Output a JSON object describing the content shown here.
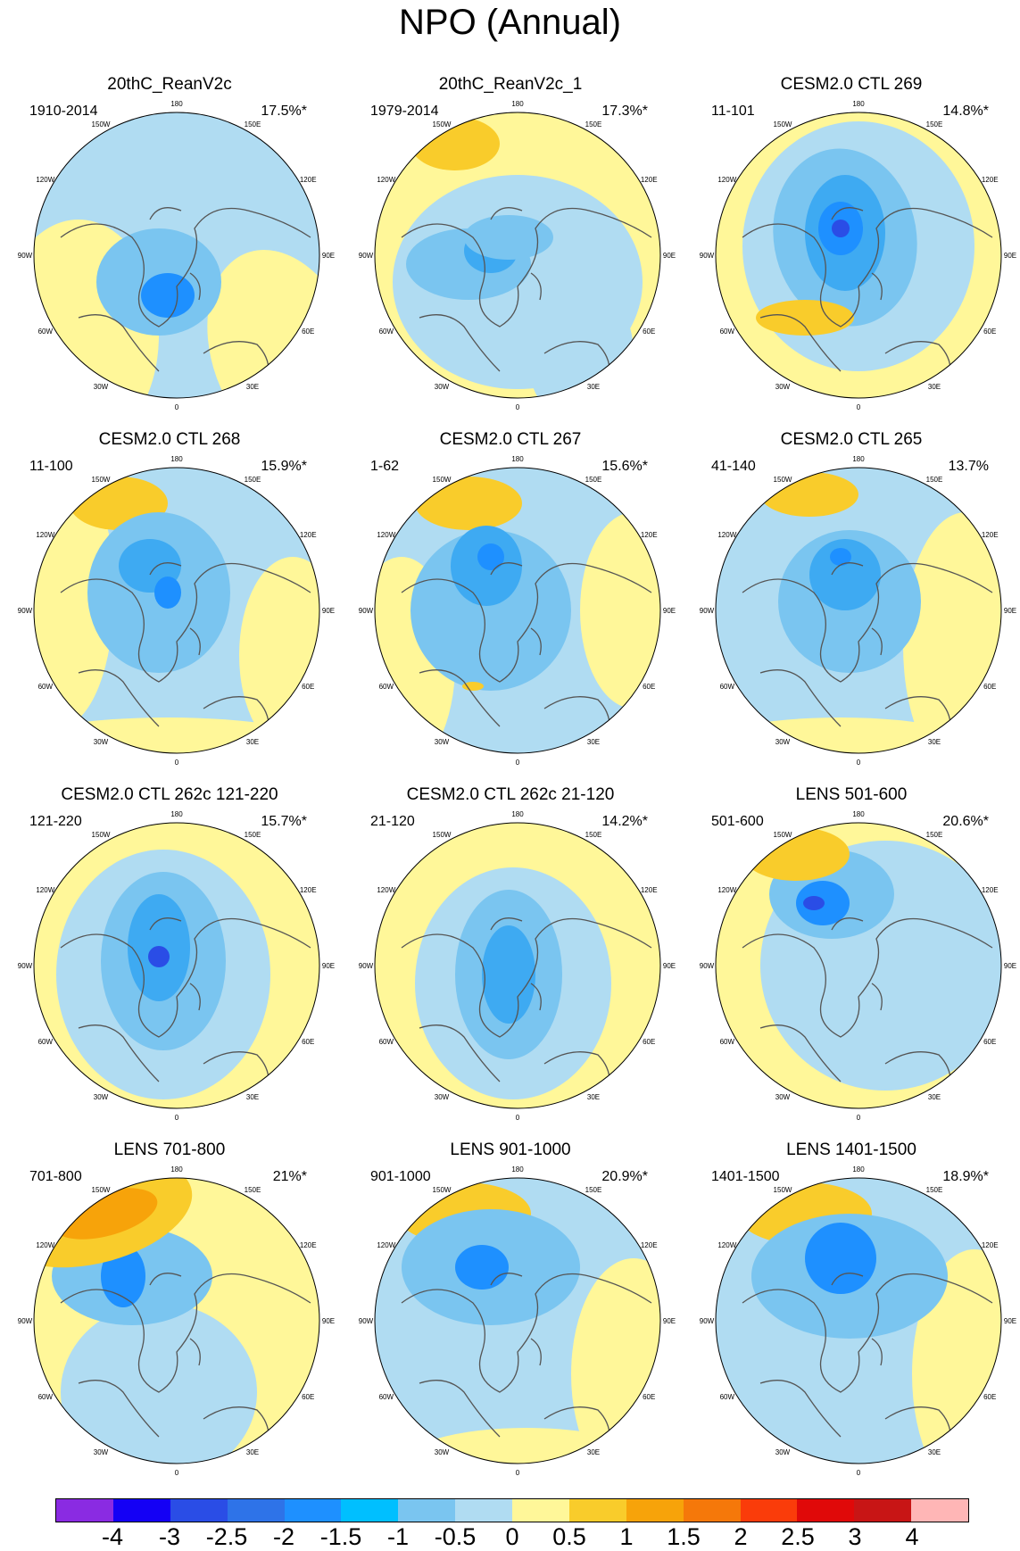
{
  "title": "NPO (Annual)",
  "longitude_labels": [
    "180",
    "150E",
    "120E",
    "90E",
    "60E",
    "30E",
    "0",
    "30W",
    "60W",
    "90W",
    "120W",
    "150W"
  ],
  "panels": [
    {
      "title": "20thC_ReanV2c",
      "period": "1910-2014",
      "variance": "17.5%*"
    },
    {
      "title": "20thC_ReanV2c_1",
      "period": "1979-2014",
      "variance": "17.3%*"
    },
    {
      "title": "CESM2.0 CTL 269",
      "period": "11-101",
      "variance": "14.8%*"
    },
    {
      "title": "CESM2.0 CTL 268",
      "period": "11-100",
      "variance": "15.9%*"
    },
    {
      "title": "CESM2.0 CTL 267",
      "period": "1-62",
      "variance": "15.6%*"
    },
    {
      "title": "CESM2.0 CTL 265",
      "period": "41-140",
      "variance": "13.7%"
    },
    {
      "title": "CESM2.0 CTL 262c 121-220",
      "period": "121-220",
      "variance": "15.7%*"
    },
    {
      "title": "CESM2.0 CTL 262c 21-120",
      "period": "21-120",
      "variance": "14.2%*"
    },
    {
      "title": "LENS 501-600",
      "period": "501-600",
      "variance": "20.6%*"
    },
    {
      "title": "LENS 701-800",
      "period": "701-800",
      "variance": "21%*"
    },
    {
      "title": "LENS 901-1000",
      "period": "901-1000",
      "variance": "20.9%*"
    },
    {
      "title": "LENS 1401-1500",
      "period": "1401-1500",
      "variance": "18.9%*"
    }
  ],
  "colorbar": {
    "colors": [
      "#8a2be2",
      "#1400f5",
      "#2a4de6",
      "#2e73e8",
      "#1e90ff",
      "#00bfff",
      "#7ac5f0",
      "#b0dcf2",
      "#fff799",
      "#f9cc2b",
      "#f7a30a",
      "#f5780a",
      "#fa3c0a",
      "#e00909",
      "#c81515",
      "#ffb6b6"
    ],
    "labels": [
      "-4",
      "-3",
      "-2.5",
      "-2",
      "-1.5",
      "-1",
      "-0.5",
      "0",
      "0.5",
      "1",
      "1.5",
      "2",
      "2.5",
      "3",
      "4"
    ]
  }
}
